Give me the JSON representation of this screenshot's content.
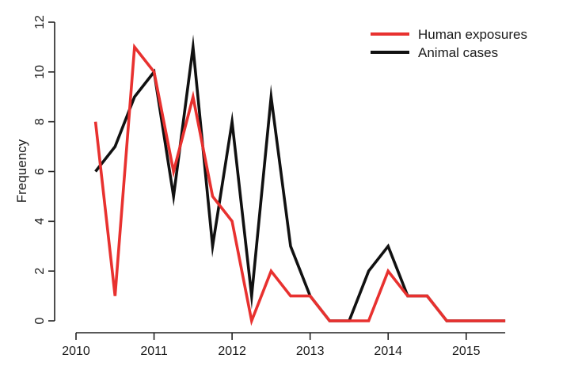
{
  "chart_data": {
    "type": "line",
    "title": "",
    "xlabel": "",
    "ylabel": "Frequency",
    "xlim": [
      2010,
      2015.55
    ],
    "ylim": [
      0,
      12
    ],
    "xticks": [
      "2010",
      "2011",
      "2012",
      "2013",
      "2014",
      "2015"
    ],
    "yticks": [
      "0",
      "2",
      "4",
      "6",
      "8",
      "10",
      "12"
    ],
    "grid": false,
    "legend_position": "top-right",
    "x": [
      2010.25,
      2010.5,
      2010.75,
      2011.0,
      2011.25,
      2011.5,
      2011.75,
      2012.0,
      2012.25,
      2012.5,
      2012.75,
      2013.0,
      2013.25,
      2013.5,
      2013.75,
      2014.0,
      2014.25,
      2014.5,
      2014.75,
      2015.0,
      2015.25,
      2015.5
    ],
    "series": [
      {
        "name": "Human exposures",
        "color": "#e8312f",
        "values": [
          8,
          1,
          11,
          10,
          6,
          9,
          5,
          4,
          0,
          2,
          1,
          1,
          0,
          0,
          0,
          2,
          1,
          1,
          0,
          0,
          0,
          0
        ]
      },
      {
        "name": "Animal cases",
        "color": "#111111",
        "values": [
          6,
          7,
          9,
          10,
          5,
          11,
          3,
          8,
          1,
          9,
          3,
          1,
          0,
          0,
          2,
          3,
          1,
          1,
          0,
          0,
          0,
          0
        ]
      }
    ]
  }
}
